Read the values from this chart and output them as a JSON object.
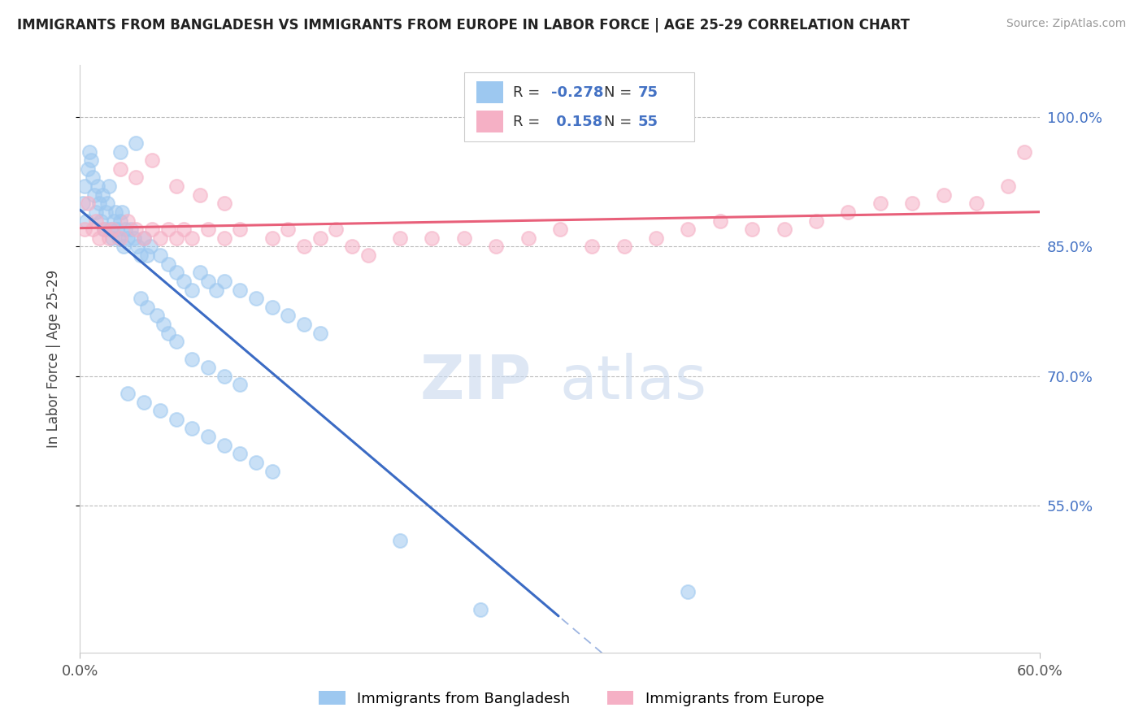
{
  "title": "IMMIGRANTS FROM BANGLADESH VS IMMIGRANTS FROM EUROPE IN LABOR FORCE | AGE 25-29 CORRELATION CHART",
  "source": "Source: ZipAtlas.com",
  "ylabel": "In Labor Force | Age 25-29",
  "xlim": [
    0.0,
    0.6
  ],
  "ylim": [
    0.38,
    1.06
  ],
  "xticks": [
    0.0,
    0.6
  ],
  "xticklabels": [
    "0.0%",
    "60.0%"
  ],
  "yticks": [
    0.55,
    0.7,
    0.85,
    1.0
  ],
  "yticklabels": [
    "55.0%",
    "70.0%",
    "85.0%",
    "100.0%"
  ],
  "blue_color": "#9DC8F0",
  "pink_color": "#F5B0C5",
  "blue_line_color": "#3B6BC4",
  "pink_line_color": "#E8607A",
  "R_blue": -0.278,
  "N_blue": 75,
  "R_pink": 0.158,
  "N_pink": 55,
  "legend_label_blue": "Immigrants from Bangladesh",
  "legend_label_pink": "Immigrants from Europe",
  "watermark_top": "ZIP",
  "watermark_bot": "atlas",
  "bg_color": "#FFFFFF",
  "blue_scatter_x": [
    0.002,
    0.003,
    0.004,
    0.005,
    0.006,
    0.007,
    0.008,
    0.009,
    0.01,
    0.011,
    0.012,
    0.013,
    0.014,
    0.015,
    0.016,
    0.017,
    0.018,
    0.019,
    0.02,
    0.021,
    0.022,
    0.023,
    0.024,
    0.025,
    0.026,
    0.027,
    0.028,
    0.03,
    0.032,
    0.034,
    0.036,
    0.038,
    0.04,
    0.042,
    0.044,
    0.05,
    0.055,
    0.06,
    0.065,
    0.07,
    0.075,
    0.08,
    0.085,
    0.09,
    0.1,
    0.11,
    0.12,
    0.13,
    0.14,
    0.15,
    0.038,
    0.042,
    0.048,
    0.052,
    0.055,
    0.06,
    0.07,
    0.08,
    0.09,
    0.1,
    0.03,
    0.04,
    0.05,
    0.06,
    0.07,
    0.08,
    0.09,
    0.1,
    0.11,
    0.12,
    0.025,
    0.035,
    0.2,
    0.25,
    0.38
  ],
  "blue_scatter_y": [
    0.9,
    0.92,
    0.88,
    0.94,
    0.96,
    0.95,
    0.93,
    0.91,
    0.89,
    0.92,
    0.9,
    0.88,
    0.91,
    0.87,
    0.89,
    0.9,
    0.92,
    0.87,
    0.86,
    0.88,
    0.89,
    0.87,
    0.86,
    0.88,
    0.89,
    0.85,
    0.87,
    0.86,
    0.87,
    0.86,
    0.85,
    0.84,
    0.86,
    0.84,
    0.85,
    0.84,
    0.83,
    0.82,
    0.81,
    0.8,
    0.82,
    0.81,
    0.8,
    0.81,
    0.8,
    0.79,
    0.78,
    0.77,
    0.76,
    0.75,
    0.79,
    0.78,
    0.77,
    0.76,
    0.75,
    0.74,
    0.72,
    0.71,
    0.7,
    0.69,
    0.68,
    0.67,
    0.66,
    0.65,
    0.64,
    0.63,
    0.62,
    0.61,
    0.6,
    0.59,
    0.96,
    0.97,
    0.51,
    0.43,
    0.45
  ],
  "pink_scatter_x": [
    0.003,
    0.005,
    0.008,
    0.01,
    0.012,
    0.015,
    0.018,
    0.02,
    0.025,
    0.03,
    0.035,
    0.04,
    0.045,
    0.05,
    0.055,
    0.06,
    0.065,
    0.07,
    0.08,
    0.09,
    0.1,
    0.12,
    0.13,
    0.14,
    0.15,
    0.16,
    0.17,
    0.18,
    0.2,
    0.22,
    0.24,
    0.26,
    0.28,
    0.3,
    0.32,
    0.34,
    0.36,
    0.38,
    0.4,
    0.42,
    0.44,
    0.46,
    0.48,
    0.5,
    0.52,
    0.54,
    0.56,
    0.58,
    0.59,
    0.025,
    0.035,
    0.045,
    0.06,
    0.075,
    0.09
  ],
  "pink_scatter_y": [
    0.87,
    0.9,
    0.87,
    0.88,
    0.86,
    0.87,
    0.86,
    0.87,
    0.86,
    0.88,
    0.87,
    0.86,
    0.87,
    0.86,
    0.87,
    0.86,
    0.87,
    0.86,
    0.87,
    0.86,
    0.87,
    0.86,
    0.87,
    0.85,
    0.86,
    0.87,
    0.85,
    0.84,
    0.86,
    0.86,
    0.86,
    0.85,
    0.86,
    0.87,
    0.85,
    0.85,
    0.86,
    0.87,
    0.88,
    0.87,
    0.87,
    0.88,
    0.89,
    0.9,
    0.9,
    0.91,
    0.9,
    0.92,
    0.96,
    0.94,
    0.93,
    0.95,
    0.92,
    0.91,
    0.9
  ]
}
